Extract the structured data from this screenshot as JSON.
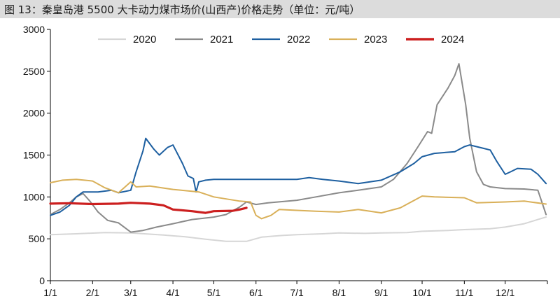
{
  "figure": {
    "title": "图 13：秦皇岛港 5500 大卡动力煤市场价(山西产)价格走势（单位：元/吨）"
  },
  "chart_data": {
    "type": "line",
    "title": "图 13：秦皇岛港 5500 大卡动力煤市场价(山西产)价格走势（单位：元/吨）",
    "xlabel": "",
    "ylabel": "",
    "x_axis": "day-of-year (Jan 1 – Dec 31)",
    "x_ticks": [
      "1/1",
      "2/1",
      "3/1",
      "4/1",
      "5/1",
      "6/1",
      "7/1",
      "8/1",
      "9/1",
      "10/1",
      "11/1",
      "12/1"
    ],
    "ylim": [
      0,
      3000
    ],
    "y_ticks": [
      0,
      500,
      1000,
      1500,
      2000,
      2500,
      3000
    ],
    "grid": false,
    "legend_position": "top",
    "series": [
      {
        "name": "2020",
        "color": "#d6d6d6",
        "points": [
          [
            "1/1",
            550
          ],
          [
            "1/20",
            560
          ],
          [
            "2/10",
            575
          ],
          [
            "3/1",
            570
          ],
          [
            "3/25",
            545
          ],
          [
            "4/10",
            525
          ],
          [
            "4/25",
            495
          ],
          [
            "5/10",
            470
          ],
          [
            "5/25",
            470
          ],
          [
            "6/5",
            520
          ],
          [
            "6/20",
            540
          ],
          [
            "7/1",
            550
          ],
          [
            "7/20",
            560
          ],
          [
            "8/1",
            570
          ],
          [
            "8/20",
            565
          ],
          [
            "9/1",
            570
          ],
          [
            "9/20",
            575
          ],
          [
            "10/1",
            590
          ],
          [
            "10/20",
            600
          ],
          [
            "11/1",
            610
          ],
          [
            "11/20",
            620
          ],
          [
            "12/1",
            640
          ],
          [
            "12/15",
            680
          ],
          [
            "12/25",
            730
          ],
          [
            "12/31",
            760
          ]
        ]
      },
      {
        "name": "2021",
        "color": "#8a8a8a",
        "points": [
          [
            "1/1",
            790
          ],
          [
            "1/8",
            850
          ],
          [
            "1/15",
            930
          ],
          [
            "1/20",
            1000
          ],
          [
            "1/25",
            1040
          ],
          [
            "1/30",
            950
          ],
          [
            "2/5",
            820
          ],
          [
            "2/12",
            720
          ],
          [
            "2/20",
            690
          ],
          [
            "3/1",
            580
          ],
          [
            "3/10",
            600
          ],
          [
            "3/20",
            640
          ],
          [
            "4/1",
            680
          ],
          [
            "4/15",
            730
          ],
          [
            "5/1",
            760
          ],
          [
            "5/10",
            790
          ],
          [
            "5/20",
            880
          ],
          [
            "5/25",
            940
          ],
          [
            "6/1",
            910
          ],
          [
            "6/10",
            930
          ],
          [
            "7/1",
            960
          ],
          [
            "7/15",
            1000
          ],
          [
            "8/1",
            1050
          ],
          [
            "8/15",
            1080
          ],
          [
            "9/1",
            1120
          ],
          [
            "9/10",
            1210
          ],
          [
            "9/20",
            1400
          ],
          [
            "9/28",
            1600
          ],
          [
            "10/5",
            1780
          ],
          [
            "10/8",
            1760
          ],
          [
            "10/12",
            2100
          ],
          [
            "10/20",
            2300
          ],
          [
            "10/25",
            2450
          ],
          [
            "10/28",
            2590
          ],
          [
            "11/2",
            2100
          ],
          [
            "11/5",
            1700
          ],
          [
            "11/10",
            1300
          ],
          [
            "11/15",
            1150
          ],
          [
            "11/20",
            1120
          ],
          [
            "12/1",
            1100
          ],
          [
            "12/15",
            1095
          ],
          [
            "12/25",
            1080
          ],
          [
            "12/31",
            790
          ]
        ]
      },
      {
        "name": "2022",
        "color": "#1d5fa0",
        "points": [
          [
            "1/1",
            780
          ],
          [
            "1/8",
            820
          ],
          [
            "1/15",
            900
          ],
          [
            "1/20",
            1000
          ],
          [
            "1/25",
            1060
          ],
          [
            "2/5",
            1060
          ],
          [
            "2/15",
            1080
          ],
          [
            "2/20",
            1050
          ],
          [
            "3/1",
            1080
          ],
          [
            "3/5",
            1300
          ],
          [
            "3/10",
            1550
          ],
          [
            "3/12",
            1700
          ],
          [
            "3/18",
            1570
          ],
          [
            "3/22",
            1500
          ],
          [
            "3/28",
            1590
          ],
          [
            "4/1",
            1620
          ],
          [
            "4/8",
            1400
          ],
          [
            "4/12",
            1250
          ],
          [
            "4/16",
            1220
          ],
          [
            "4/18",
            1060
          ],
          [
            "4/20",
            1180
          ],
          [
            "4/25",
            1200
          ],
          [
            "5/1",
            1210
          ],
          [
            "6/1",
            1210
          ],
          [
            "7/1",
            1210
          ],
          [
            "7/10",
            1230
          ],
          [
            "7/20",
            1210
          ],
          [
            "8/1",
            1190
          ],
          [
            "8/15",
            1160
          ],
          [
            "9/1",
            1200
          ],
          [
            "9/15",
            1300
          ],
          [
            "9/25",
            1400
          ],
          [
            "10/1",
            1480
          ],
          [
            "10/10",
            1520
          ],
          [
            "10/25",
            1540
          ],
          [
            "11/1",
            1600
          ],
          [
            "11/5",
            1620
          ],
          [
            "11/15",
            1580
          ],
          [
            "11/20",
            1560
          ],
          [
            "11/25",
            1420
          ],
          [
            "12/1",
            1270
          ],
          [
            "12/5",
            1300
          ],
          [
            "12/10",
            1340
          ],
          [
            "12/20",
            1330
          ],
          [
            "12/25",
            1270
          ],
          [
            "12/31",
            1160
          ]
        ]
      },
      {
        "name": "2023",
        "color": "#d9b059",
        "points": [
          [
            "1/1",
            1170
          ],
          [
            "1/10",
            1200
          ],
          [
            "1/20",
            1210
          ],
          [
            "2/1",
            1190
          ],
          [
            "2/10",
            1110
          ],
          [
            "2/20",
            1050
          ],
          [
            "3/1",
            1180
          ],
          [
            "3/5",
            1120
          ],
          [
            "3/15",
            1130
          ],
          [
            "4/1",
            1090
          ],
          [
            "4/20",
            1060
          ],
          [
            "5/1",
            1000
          ],
          [
            "5/20",
            950
          ],
          [
            "5/28",
            940
          ],
          [
            "6/1",
            780
          ],
          [
            "6/5",
            740
          ],
          [
            "6/12",
            780
          ],
          [
            "6/18",
            850
          ],
          [
            "7/1",
            840
          ],
          [
            "7/15",
            830
          ],
          [
            "8/1",
            820
          ],
          [
            "8/15",
            850
          ],
          [
            "9/1",
            810
          ],
          [
            "9/15",
            870
          ],
          [
            "10/1",
            1010
          ],
          [
            "10/10",
            1000
          ],
          [
            "11/1",
            990
          ],
          [
            "11/10",
            930
          ],
          [
            "12/1",
            940
          ],
          [
            "12/15",
            950
          ],
          [
            "12/31",
            915
          ]
        ]
      },
      {
        "name": "2024",
        "color": "#cc1f1f",
        "points": [
          [
            "1/1",
            920
          ],
          [
            "1/15",
            925
          ],
          [
            "2/1",
            915
          ],
          [
            "2/20",
            920
          ],
          [
            "3/1",
            930
          ],
          [
            "3/15",
            920
          ],
          [
            "3/25",
            900
          ],
          [
            "4/1",
            850
          ],
          [
            "4/15",
            830
          ],
          [
            "4/25",
            810
          ],
          [
            "5/1",
            830
          ],
          [
            "5/15",
            835
          ],
          [
            "5/20",
            850
          ],
          [
            "5/25",
            870
          ]
        ]
      }
    ]
  }
}
